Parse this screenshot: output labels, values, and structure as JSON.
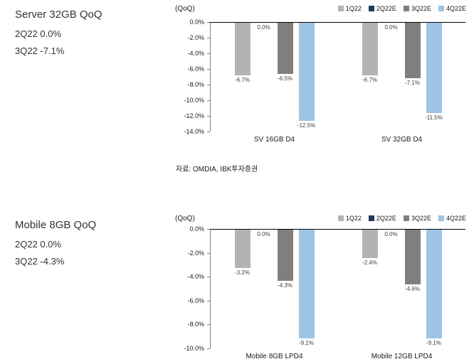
{
  "page": {
    "background": "#ffffff"
  },
  "sections": [
    {
      "title": "Server 32GB QoQ",
      "subtitle_lines": [
        "2Q22 0.0%",
        "3Q22 -7.1%"
      ],
      "source": "자료: OMDIA, IBK투자증권"
    },
    {
      "title": "Mobile 8GB QoQ",
      "subtitle_lines": [
        "2Q22 0.0%",
        "3Q22 -4.3%"
      ],
      "source": ""
    }
  ],
  "chart_data": [
    {
      "type": "bar",
      "title": "",
      "axis_label": "(QoQ)",
      "categories": [
        "SV 16GB D4",
        "SV 32GB D4"
      ],
      "series": [
        {
          "name": "1Q22",
          "color": "#b3b3b3",
          "values": [
            -6.7,
            -6.7
          ]
        },
        {
          "name": "2Q22E",
          "color": "#1f3864",
          "values": [
            0.0,
            0.0
          ]
        },
        {
          "name": "3Q22E",
          "color": "#7f7f7f",
          "values": [
            -6.5,
            -7.1
          ]
        },
        {
          "name": "4Q22E",
          "color": "#9dc3e6",
          "values": [
            -12.5,
            -11.5
          ]
        }
      ],
      "data_labels": [
        [
          "-6.7%",
          "0.0%",
          "-6.5%",
          "-12.5%"
        ],
        [
          "-6.7%",
          "0.0%",
          "-7.1%",
          "-11.5%"
        ]
      ],
      "ylim": [
        -14,
        0
      ],
      "ytick_step": 2,
      "grid": false,
      "legend_position": "top-right"
    },
    {
      "type": "bar",
      "title": "",
      "axis_label": "(QoQ)",
      "categories": [
        "Mobile 8GB LPD4",
        "Mobile 12GB LPD4"
      ],
      "series": [
        {
          "name": "1Q22",
          "color": "#b3b3b3",
          "values": [
            -3.2,
            -2.4
          ]
        },
        {
          "name": "2Q22E",
          "color": "#1f3864",
          "values": [
            0.0,
            0.0
          ]
        },
        {
          "name": "3Q22E",
          "color": "#7f7f7f",
          "values": [
            -4.3,
            -4.6
          ]
        },
        {
          "name": "4Q22E",
          "color": "#9dc3e6",
          "values": [
            -9.1,
            -9.1
          ]
        }
      ],
      "data_labels": [
        [
          "-3.2%",
          "0.0%",
          "-4.3%",
          "-9.1%"
        ],
        [
          "-2.4%",
          "0.0%",
          "-4.6%",
          "-9.1%"
        ]
      ],
      "ylim": [
        -10,
        0
      ],
      "ytick_step": 2,
      "grid": false,
      "legend_position": "top-right"
    }
  ]
}
